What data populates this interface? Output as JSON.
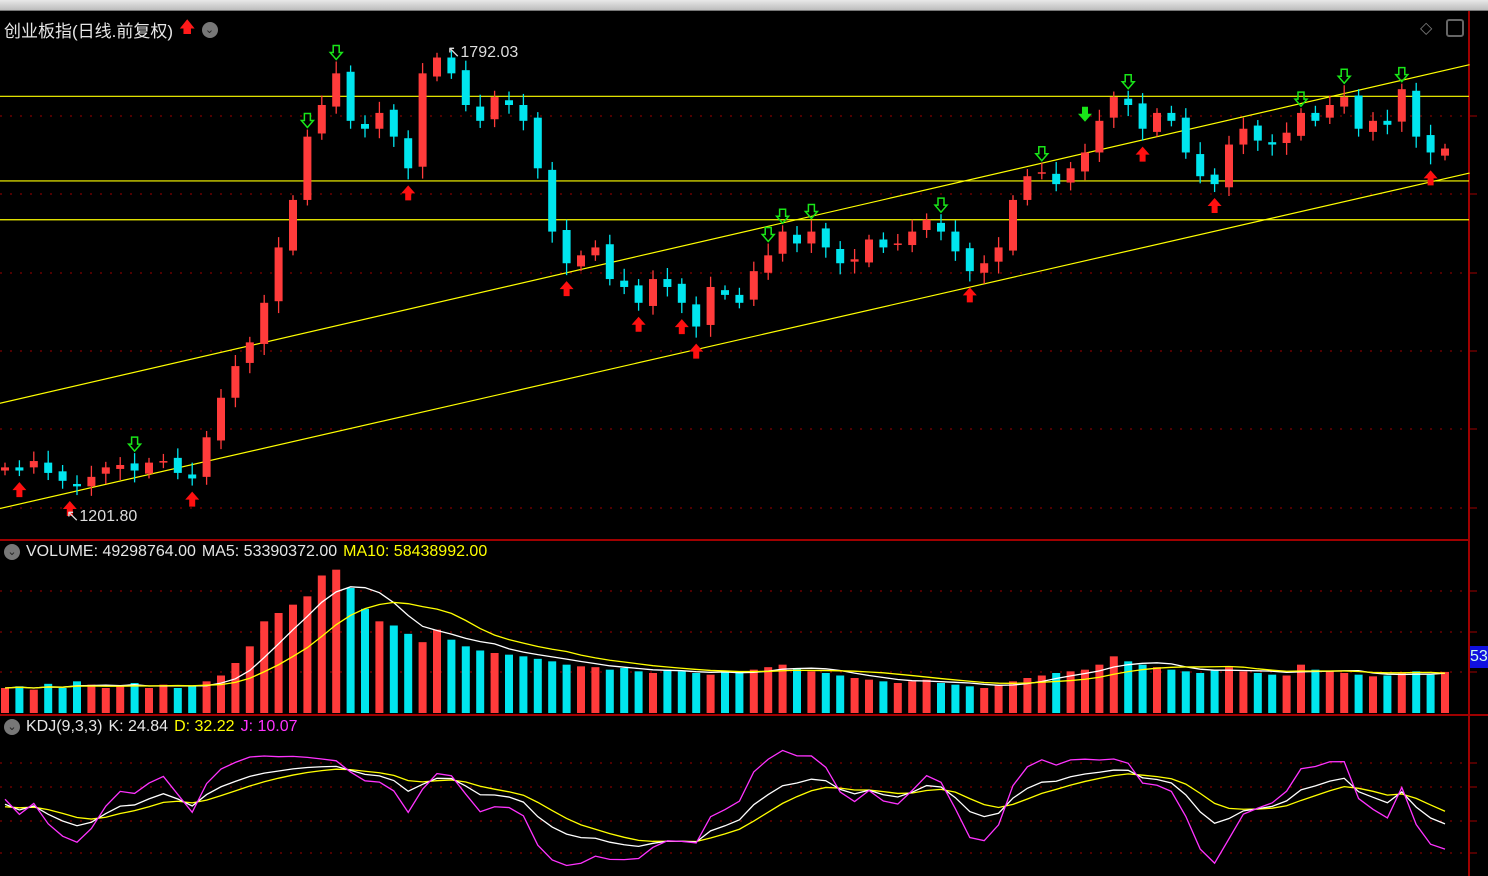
{
  "header": {
    "title": "创业板指(日线.前复权)",
    "up_icon": "red-up-arrow-icon",
    "dropdown_icon": "chevron-down-icon",
    "tool_icons": [
      "diamond-icon",
      "panel-toggle-icon"
    ]
  },
  "volume_legend": {
    "volume": "VOLUME: 49298764.00",
    "ma5": "MA5: 53390372.00",
    "ma10": "MA10: 58438992.00",
    "axis_tag": "53"
  },
  "kdj_legend": {
    "name": "KDJ(9,3,3)",
    "k": "K: 24.84",
    "d": "D: 32.22",
    "j": "J: 10.07"
  },
  "colors": {
    "up": "#ff3b3b",
    "down": "#00e5ee",
    "lines": "#ffff00",
    "ma5": "#ffffff",
    "ma10": "#ffff00",
    "k": "#ffffff",
    "d": "#ffff00",
    "j": "#ff33ff",
    "grid": "#8b0000"
  },
  "chart_data": {
    "type": "candlestick",
    "annotations": {
      "high": "1792.03",
      "low": "1201.80"
    },
    "closes": [
      1262,
      1258,
      1270,
      1255,
      1245,
      1238,
      1250,
      1262,
      1265,
      1258,
      1268,
      1270,
      1255,
      1248,
      1300,
      1350,
      1390,
      1420,
      1470,
      1540,
      1600,
      1680,
      1720,
      1760,
      1700,
      1690,
      1710,
      1680,
      1640,
      1760,
      1780,
      1760,
      1720,
      1700,
      1730,
      1720,
      1700,
      1640,
      1560,
      1520,
      1530,
      1540,
      1500,
      1490,
      1470,
      1500,
      1490,
      1470,
      1440,
      1490,
      1480,
      1470,
      1510,
      1530,
      1560,
      1545,
      1560,
      1540,
      1520,
      1525,
      1550,
      1540,
      1545,
      1560,
      1575,
      1560,
      1535,
      1510,
      1520,
      1540,
      1600,
      1630,
      1635,
      1620,
      1640,
      1660,
      1700,
      1730,
      1720,
      1690,
      1710,
      1700,
      1660,
      1630,
      1620,
      1670,
      1690,
      1675,
      1670,
      1685,
      1710,
      1700,
      1720,
      1730,
      1690,
      1700,
      1695,
      1740,
      1680,
      1660,
      1665
    ],
    "volume_millions": [
      30,
      32,
      28,
      35,
      30,
      38,
      34,
      30,
      32,
      36,
      30,
      34,
      30,
      32,
      38,
      45,
      60,
      80,
      110,
      120,
      130,
      140,
      165,
      172,
      150,
      125,
      110,
      105,
      95,
      85,
      100,
      88,
      80,
      75,
      72,
      70,
      68,
      65,
      62,
      58,
      56,
      55,
      52,
      54,
      50,
      48,
      52,
      50,
      48,
      46,
      50,
      48,
      52,
      55,
      58,
      54,
      50,
      48,
      45,
      42,
      40,
      38,
      36,
      38,
      40,
      36,
      34,
      32,
      30,
      34,
      38,
      42,
      45,
      48,
      50,
      52,
      58,
      68,
      62,
      58,
      55,
      52,
      50,
      48,
      52,
      55,
      50,
      48,
      46,
      45,
      58,
      52,
      50,
      48,
      46,
      44,
      45,
      48,
      50,
      46,
      49.3
    ],
    "horizontal_levels": [
      1731,
      1624,
      1575
    ],
    "trendlines": [
      {
        "from": [
          -0.35,
          1343
        ],
        "to": [
          101.7,
          1771
        ]
      },
      {
        "from": [
          -0.35,
          1210
        ],
        "to": [
          101.7,
          1634
        ]
      }
    ],
    "buy_signals": [
      1,
      4.5,
      13,
      28,
      39,
      44,
      47,
      48,
      67,
      79,
      84,
      99
    ],
    "sell_signals": [
      9,
      21,
      23,
      53,
      54,
      56,
      65,
      72,
      78,
      90,
      93,
      97
    ],
    "strong_sell_signals": [
      75
    ]
  }
}
